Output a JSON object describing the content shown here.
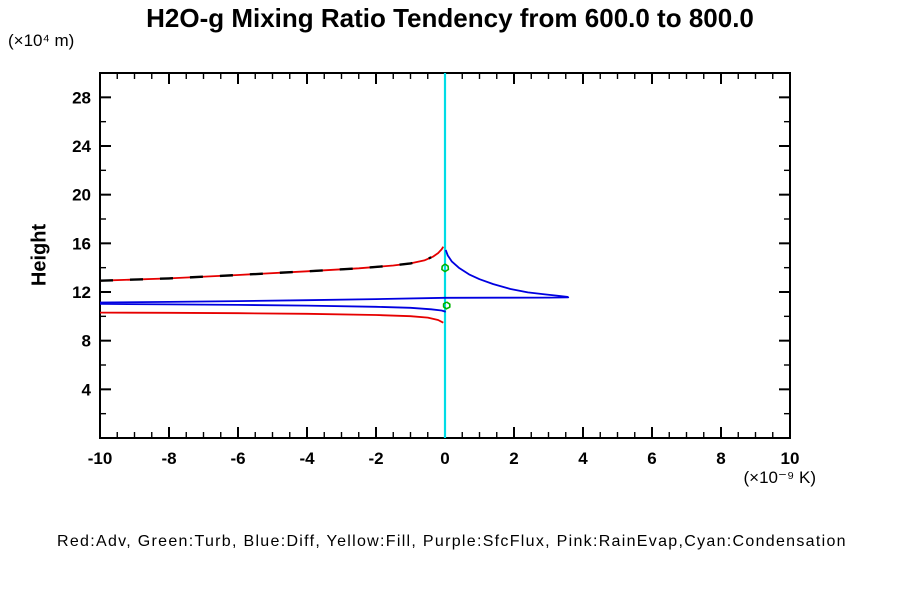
{
  "title": "H2O-g Mixing Ratio Tendency from 600.0 to 800.0",
  "legend": "Red:Adv, Green:Turb, Blue:Diff, Yellow:Fill, Purple:SfcFlux, Pink:RainEvap,Cyan:Condensation",
  "colors": {
    "black": "#000000",
    "red": "#e60000",
    "blue": "#0000e0",
    "green": "#00b300",
    "cyan": "#00dce6"
  },
  "chart_data": {
    "type": "line",
    "title": "H2O-g Mixing Ratio Tendency from 600.0 to 800.0",
    "grid": false,
    "legend_position": "bottom-text",
    "x_axis": {
      "unit": "(×10⁻⁹ K)",
      "lim": [
        -10,
        10
      ],
      "major_ticks": [
        -10,
        -8,
        -6,
        -4,
        -2,
        0,
        2,
        4,
        6,
        8,
        10
      ],
      "tick_labels": [
        "-10",
        "-8",
        "-6",
        "-4",
        "-2",
        "0",
        "2",
        "4",
        "6",
        "8",
        "10"
      ],
      "minor_step": 0.5
    },
    "y_axis": {
      "label": "Height",
      "unit": "(×10⁴ m)",
      "lim": [
        0,
        30
      ],
      "major_ticks": [
        4,
        8,
        12,
        16,
        20,
        24,
        28
      ],
      "tick_labels": [
        "4",
        "8",
        "12",
        "16",
        "20",
        "24",
        "28"
      ],
      "minor_ticks": [
        2,
        6,
        10,
        14,
        18,
        22,
        26
      ]
    },
    "series": [
      {
        "name": "adv-upper",
        "legend": "Adv",
        "color": "red",
        "style": "solid",
        "width": 1.8,
        "points": [
          [
            -10,
            12.93
          ],
          [
            -8,
            13.12
          ],
          [
            -6,
            13.4
          ],
          [
            -4,
            13.7
          ],
          [
            -2.5,
            13.95
          ],
          [
            -1.5,
            14.18
          ],
          [
            -1.0,
            14.35
          ],
          [
            -0.6,
            14.6
          ],
          [
            -0.35,
            14.9
          ],
          [
            -0.2,
            15.2
          ],
          [
            -0.1,
            15.5
          ],
          [
            -0.05,
            15.72
          ]
        ]
      },
      {
        "name": "adv-lower",
        "legend": "Adv",
        "color": "red",
        "style": "solid",
        "width": 1.8,
        "points": [
          [
            -10,
            10.31
          ],
          [
            -8,
            10.29
          ],
          [
            -6,
            10.26
          ],
          [
            -4,
            10.21
          ],
          [
            -2,
            10.11
          ],
          [
            -1,
            10.01
          ],
          [
            -0.5,
            9.9
          ],
          [
            -0.2,
            9.7
          ],
          [
            -0.05,
            9.48
          ]
        ]
      },
      {
        "name": "total-dashed",
        "legend": "Total",
        "color": "black",
        "style": "dashed",
        "width": 2.4,
        "points": [
          [
            -10,
            12.93
          ],
          [
            -8,
            13.12
          ],
          [
            -6,
            13.4
          ],
          [
            -4,
            13.7
          ],
          [
            -2.5,
            13.95
          ],
          [
            -1.5,
            14.18
          ],
          [
            -1.0,
            14.35
          ],
          [
            -0.6,
            14.6
          ],
          [
            -0.4,
            14.85
          ]
        ]
      },
      {
        "name": "condensation",
        "legend": "Condensation",
        "color": "cyan",
        "style": "solid",
        "width": 2.2,
        "points": [
          [
            0,
            0
          ],
          [
            0,
            30
          ]
        ]
      },
      {
        "name": "diff-main",
        "legend": "Diff",
        "color": "blue",
        "style": "solid",
        "width": 1.8,
        "points": [
          [
            0.02,
            15.45
          ],
          [
            0.08,
            15.0
          ],
          [
            0.2,
            14.5
          ],
          [
            0.4,
            14.0
          ],
          [
            0.7,
            13.45
          ],
          [
            1.0,
            13.05
          ],
          [
            1.4,
            12.65
          ],
          [
            1.9,
            12.25
          ],
          [
            2.4,
            11.97
          ],
          [
            2.9,
            11.8
          ],
          [
            3.3,
            11.68
          ],
          [
            3.55,
            11.6
          ],
          [
            3.57,
            11.56
          ],
          [
            3.0,
            11.54
          ],
          [
            1.5,
            11.53
          ],
          [
            0,
            11.52
          ],
          [
            -2,
            11.42
          ],
          [
            -4,
            11.33
          ],
          [
            -6,
            11.25
          ],
          [
            -8,
            11.19
          ],
          [
            -10,
            11.14
          ]
        ]
      },
      {
        "name": "diff-lower",
        "legend": "Diff",
        "color": "blue",
        "style": "solid",
        "width": 1.8,
        "points": [
          [
            -10,
            11.02
          ],
          [
            -8,
            10.98
          ],
          [
            -6,
            10.94
          ],
          [
            -4,
            10.88
          ],
          [
            -2,
            10.78
          ],
          [
            -1,
            10.7
          ],
          [
            -0.4,
            10.58
          ],
          [
            -0.1,
            10.48
          ],
          [
            0.02,
            10.38
          ]
        ]
      },
      {
        "name": "turb-upper",
        "legend": "Turb",
        "color": "green",
        "style": "solid",
        "width": 1.6,
        "points": [
          [
            0.0,
            14.3
          ],
          [
            0.09,
            14.12
          ],
          [
            0.1,
            13.85
          ],
          [
            0.0,
            13.68
          ],
          [
            -0.09,
            13.85
          ],
          [
            -0.08,
            14.12
          ],
          [
            0.0,
            14.3
          ]
        ]
      },
      {
        "name": "turb-lower",
        "legend": "Turb",
        "color": "green",
        "style": "solid",
        "width": 1.6,
        "points": [
          [
            0.05,
            11.18
          ],
          [
            0.14,
            11.0
          ],
          [
            0.14,
            10.76
          ],
          [
            0.04,
            10.62
          ],
          [
            -0.04,
            10.78
          ],
          [
            -0.04,
            11.02
          ],
          [
            0.05,
            11.18
          ]
        ]
      }
    ]
  }
}
